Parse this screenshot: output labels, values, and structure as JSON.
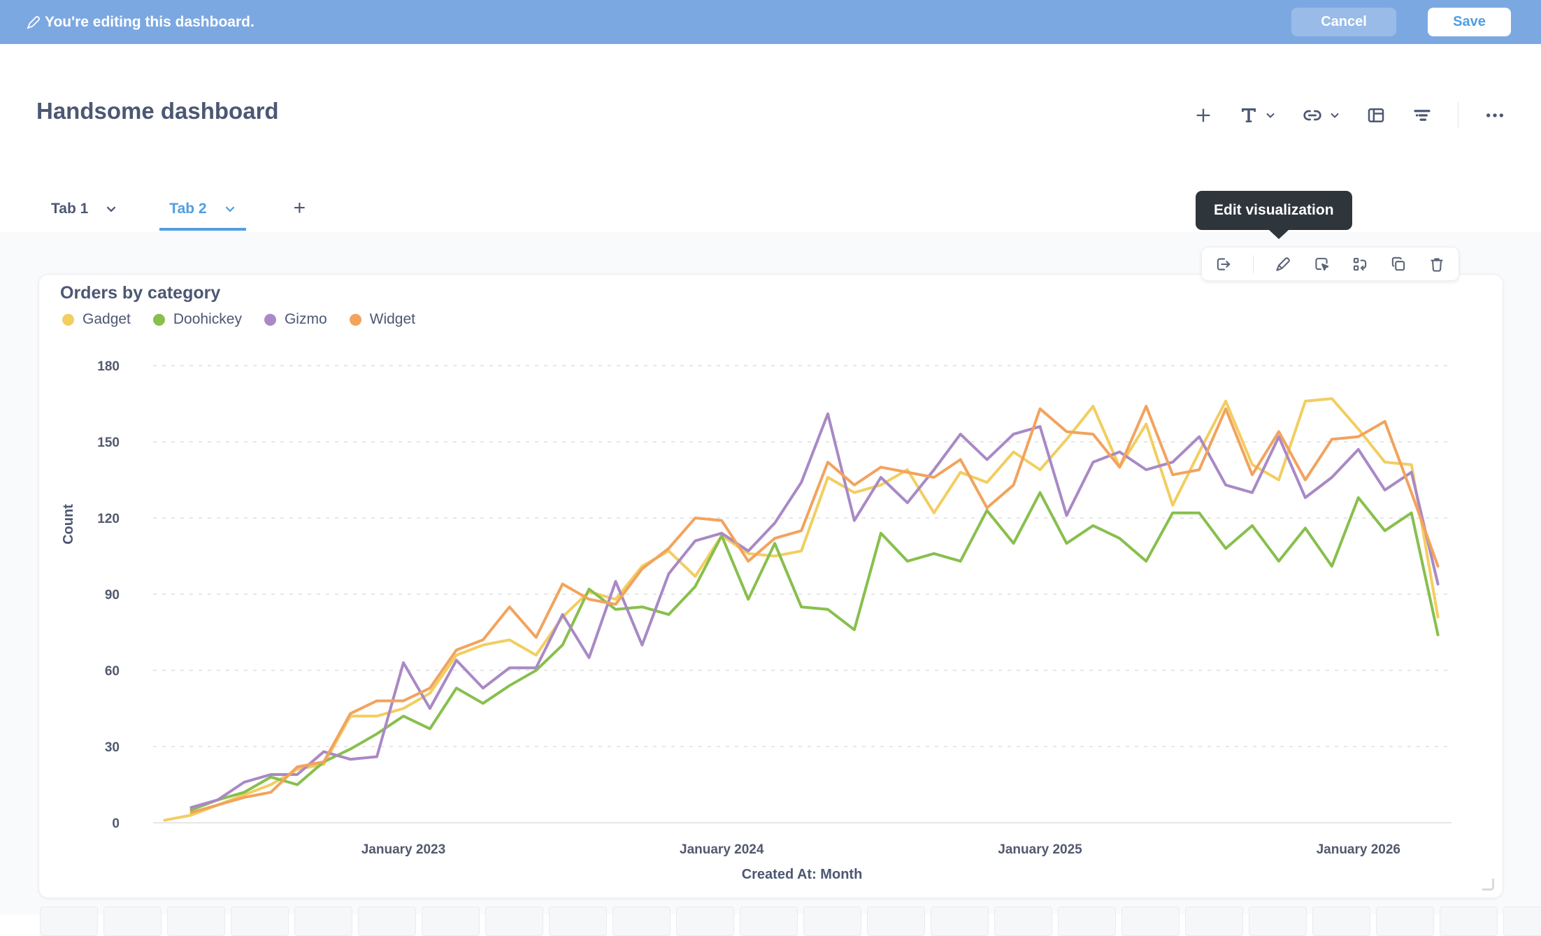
{
  "edit_bar": {
    "message": "You're editing this dashboard.",
    "cancel_label": "Cancel",
    "save_label": "Save"
  },
  "header": {
    "title": "Handsome dashboard",
    "icons": [
      "add-icon",
      "text-icon",
      "link-icon",
      "add-section-icon",
      "filter-icon",
      "ellipsis-icon"
    ]
  },
  "tabs": [
    {
      "label": "Tab 1",
      "active": false
    },
    {
      "label": "Tab 2",
      "active": true
    }
  ],
  "tab_add_label": "+",
  "tooltip": {
    "text": "Edit visualization"
  },
  "action_toolbar_icons": [
    "send-to-icon",
    "edit-visualization-pencil-icon",
    "click-behavior-icon",
    "replace-visualization-icon",
    "duplicate-icon",
    "trash-icon"
  ],
  "card": {
    "title": "Orders by category"
  },
  "colors": {
    "edit_bar_blue": "#7CA8E2",
    "brand_blue": "#509EE3",
    "text_dark": "#4C5773",
    "tooltip_bg": "#2E353B",
    "canvas_bg": "#F9FAFB",
    "gridline": "#E6E6E6"
  },
  "chart_data": {
    "type": "line",
    "title": "Orders by category",
    "xlabel": "Created At: Month",
    "ylabel": "Count",
    "ylim": [
      0,
      180
    ],
    "yticks": [
      0,
      30,
      60,
      90,
      120,
      150,
      180
    ],
    "grid": "dashed-horizontal",
    "legend_position": "top-left",
    "x": [
      "2022-04",
      "2022-05",
      "2022-06",
      "2022-07",
      "2022-08",
      "2022-09",
      "2022-10",
      "2022-11",
      "2022-12",
      "2023-01",
      "2023-02",
      "2023-03",
      "2023-04",
      "2023-05",
      "2023-06",
      "2023-07",
      "2023-08",
      "2023-09",
      "2023-10",
      "2023-11",
      "2023-12",
      "2024-01",
      "2024-02",
      "2024-03",
      "2024-04",
      "2024-05",
      "2024-06",
      "2024-07",
      "2024-08",
      "2024-09",
      "2024-10",
      "2024-11",
      "2024-12",
      "2025-01",
      "2025-02",
      "2025-03",
      "2025-04",
      "2025-05",
      "2025-06",
      "2025-07",
      "2025-08",
      "2025-09",
      "2025-10",
      "2025-11",
      "2025-12",
      "2026-01",
      "2026-02",
      "2026-03",
      "2026-04"
    ],
    "xticks": [
      {
        "label": "January 2023",
        "month": "2023-01"
      },
      {
        "label": "January 2024",
        "month": "2024-01"
      },
      {
        "label": "January 2025",
        "month": "2025-01"
      },
      {
        "label": "January 2026",
        "month": "2026-01"
      }
    ],
    "series": [
      {
        "name": "Gadget",
        "color": "#F2CE60",
        "values": [
          1,
          3,
          7,
          11,
          15,
          21,
          23,
          42,
          42,
          45,
          51,
          66,
          70,
          72,
          66,
          81,
          91,
          88,
          101,
          107,
          97,
          113,
          106,
          105,
          107,
          136,
          130,
          133,
          139,
          122,
          138,
          134,
          146,
          139,
          151,
          164,
          140,
          157,
          125,
          146,
          166,
          141,
          135,
          166,
          167,
          155,
          142,
          141,
          81
        ]
      },
      {
        "name": "Doohickey",
        "color": "#88BF4D",
        "values": [
          null,
          5,
          9,
          12,
          18,
          15,
          24,
          29,
          35,
          42,
          37,
          53,
          47,
          54,
          60,
          70,
          92,
          84,
          85,
          82,
          93,
          113,
          88,
          110,
          85,
          84,
          76,
          114,
          103,
          106,
          103,
          123,
          110,
          130,
          110,
          117,
          112,
          103,
          122,
          122,
          108,
          117,
          103,
          116,
          101,
          128,
          115,
          122,
          74
        ]
      },
      {
        "name": "Gizmo",
        "color": "#A989C5",
        "values": [
          null,
          6,
          9,
          16,
          19,
          19,
          28,
          25,
          26,
          63,
          45,
          64,
          53,
          61,
          61,
          82,
          65,
          95,
          70,
          98,
          111,
          114,
          107,
          118,
          134,
          161,
          119,
          136,
          126,
          139,
          153,
          143,
          153,
          156,
          121,
          142,
          146,
          139,
          142,
          152,
          133,
          130,
          152,
          128,
          136,
          147,
          131,
          138,
          94
        ]
      },
      {
        "name": "Widget",
        "color": "#F2A35E",
        "values": [
          null,
          4,
          7,
          10,
          12,
          22,
          24,
          43,
          48,
          48,
          53,
          68,
          72,
          85,
          73,
          94,
          88,
          86,
          100,
          108,
          120,
          119,
          103,
          112,
          115,
          142,
          133,
          140,
          138,
          136,
          143,
          124,
          133,
          163,
          154,
          153,
          140,
          164,
          137,
          139,
          163,
          137,
          154,
          135,
          151,
          152,
          158,
          130,
          101
        ]
      }
    ]
  }
}
